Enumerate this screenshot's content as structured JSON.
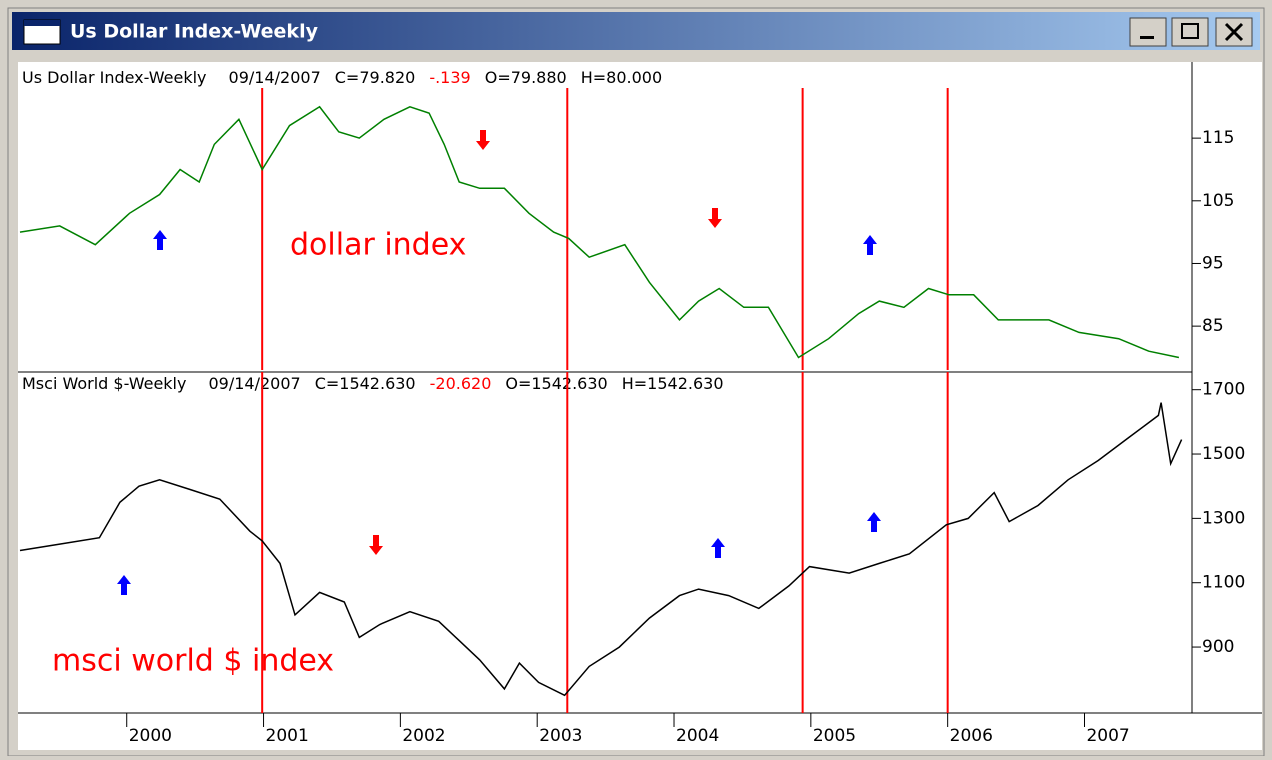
{
  "window": {
    "title": "Us Dollar Index-Weekly"
  },
  "chart_data": [
    {
      "type": "line",
      "header": {
        "name": "Us Dollar Index-Weekly",
        "date": "09/14/2007",
        "close": "C=79.820",
        "change": "-.139",
        "open": "O=79.880",
        "high": "H=80.000"
      },
      "annotation": "dollar index",
      "color": "#008000",
      "x": [
        1999.22,
        1999.51,
        1999.77,
        2000.02,
        2000.24,
        2000.39,
        2000.53,
        2000.64,
        2000.82,
        2000.99,
        2001.19,
        2001.41,
        2001.55,
        2001.7,
        2001.88,
        2002.07,
        2002.21,
        2002.32,
        2002.43,
        2002.58,
        2002.76,
        2002.94,
        2003.12,
        2003.23,
        2003.38,
        2003.64,
        2003.82,
        2004.04,
        2004.18,
        2004.33,
        2004.51,
        2004.69,
        2004.91,
        2005.13,
        2005.35,
        2005.5,
        2005.68,
        2005.86,
        2006.01,
        2006.19,
        2006.37,
        2006.74,
        2006.96,
        2007.25,
        2007.47,
        2007.69
      ],
      "values": [
        100,
        101,
        98,
        103,
        106,
        110,
        108,
        114,
        118,
        110,
        117,
        120,
        116,
        115,
        118,
        120,
        119,
        114,
        108,
        107,
        107,
        103,
        100,
        99,
        96,
        98,
        92,
        86,
        89,
        91,
        88,
        88,
        80,
        83,
        87,
        89,
        88,
        91,
        90,
        90,
        86,
        86,
        84,
        83,
        81,
        80
      ],
      "event_lines": [
        2000.99,
        2003.22,
        2004.94,
        2006.0
      ],
      "xlim": [
        1999.22,
        2007.72
      ],
      "ylim": [
        78,
        123
      ],
      "yticks": [
        85,
        95,
        105,
        115
      ]
    },
    {
      "type": "line",
      "header": {
        "name": "Msci World $-Weekly",
        "date": "09/14/2007",
        "close": "C=1542.630",
        "change": "-20.620",
        "open": "O=1542.630",
        "high": "H=1542.630"
      },
      "annotation": "msci world $ index",
      "color": "#000000",
      "x": [
        1999.22,
        1999.51,
        1999.8,
        1999.95,
        2000.09,
        2000.24,
        2000.46,
        2000.68,
        2000.9,
        2000.99,
        2001.12,
        2001.23,
        2001.41,
        2001.59,
        2001.7,
        2001.85,
        2002.07,
        2002.28,
        2002.43,
        2002.58,
        2002.76,
        2002.87,
        2003.01,
        2003.2,
        2003.38,
        2003.6,
        2003.82,
        2004.04,
        2004.18,
        2004.4,
        2004.62,
        2004.84,
        2004.99,
        2005.28,
        2005.5,
        2005.72,
        2005.99,
        2006.15,
        2006.34,
        2006.45,
        2006.66,
        2006.88,
        2007.1,
        2007.32,
        2007.54,
        2007.56,
        2007.63,
        2007.71
      ],
      "values": [
        1200,
        1220,
        1240,
        1350,
        1400,
        1420,
        1390,
        1360,
        1260,
        1230,
        1160,
        1000,
        1070,
        1040,
        930,
        970,
        1010,
        980,
        920,
        860,
        770,
        850,
        790,
        750,
        840,
        900,
        990,
        1060,
        1080,
        1060,
        1020,
        1090,
        1150,
        1130,
        1160,
        1190,
        1280,
        1300,
        1380,
        1290,
        1340,
        1420,
        1480,
        1550,
        1620,
        1660,
        1470,
        1545
      ],
      "event_lines": [
        2000.99,
        2003.22,
        2004.94,
        2006.0
      ],
      "xlim": [
        1999.22,
        2007.72
      ],
      "xticks": [
        2000,
        2001,
        2002,
        2003,
        2004,
        2005,
        2006,
        2007
      ],
      "ylim": [
        695,
        1755
      ],
      "yticks": [
        900,
        1100,
        1300,
        1500,
        1700
      ]
    }
  ]
}
